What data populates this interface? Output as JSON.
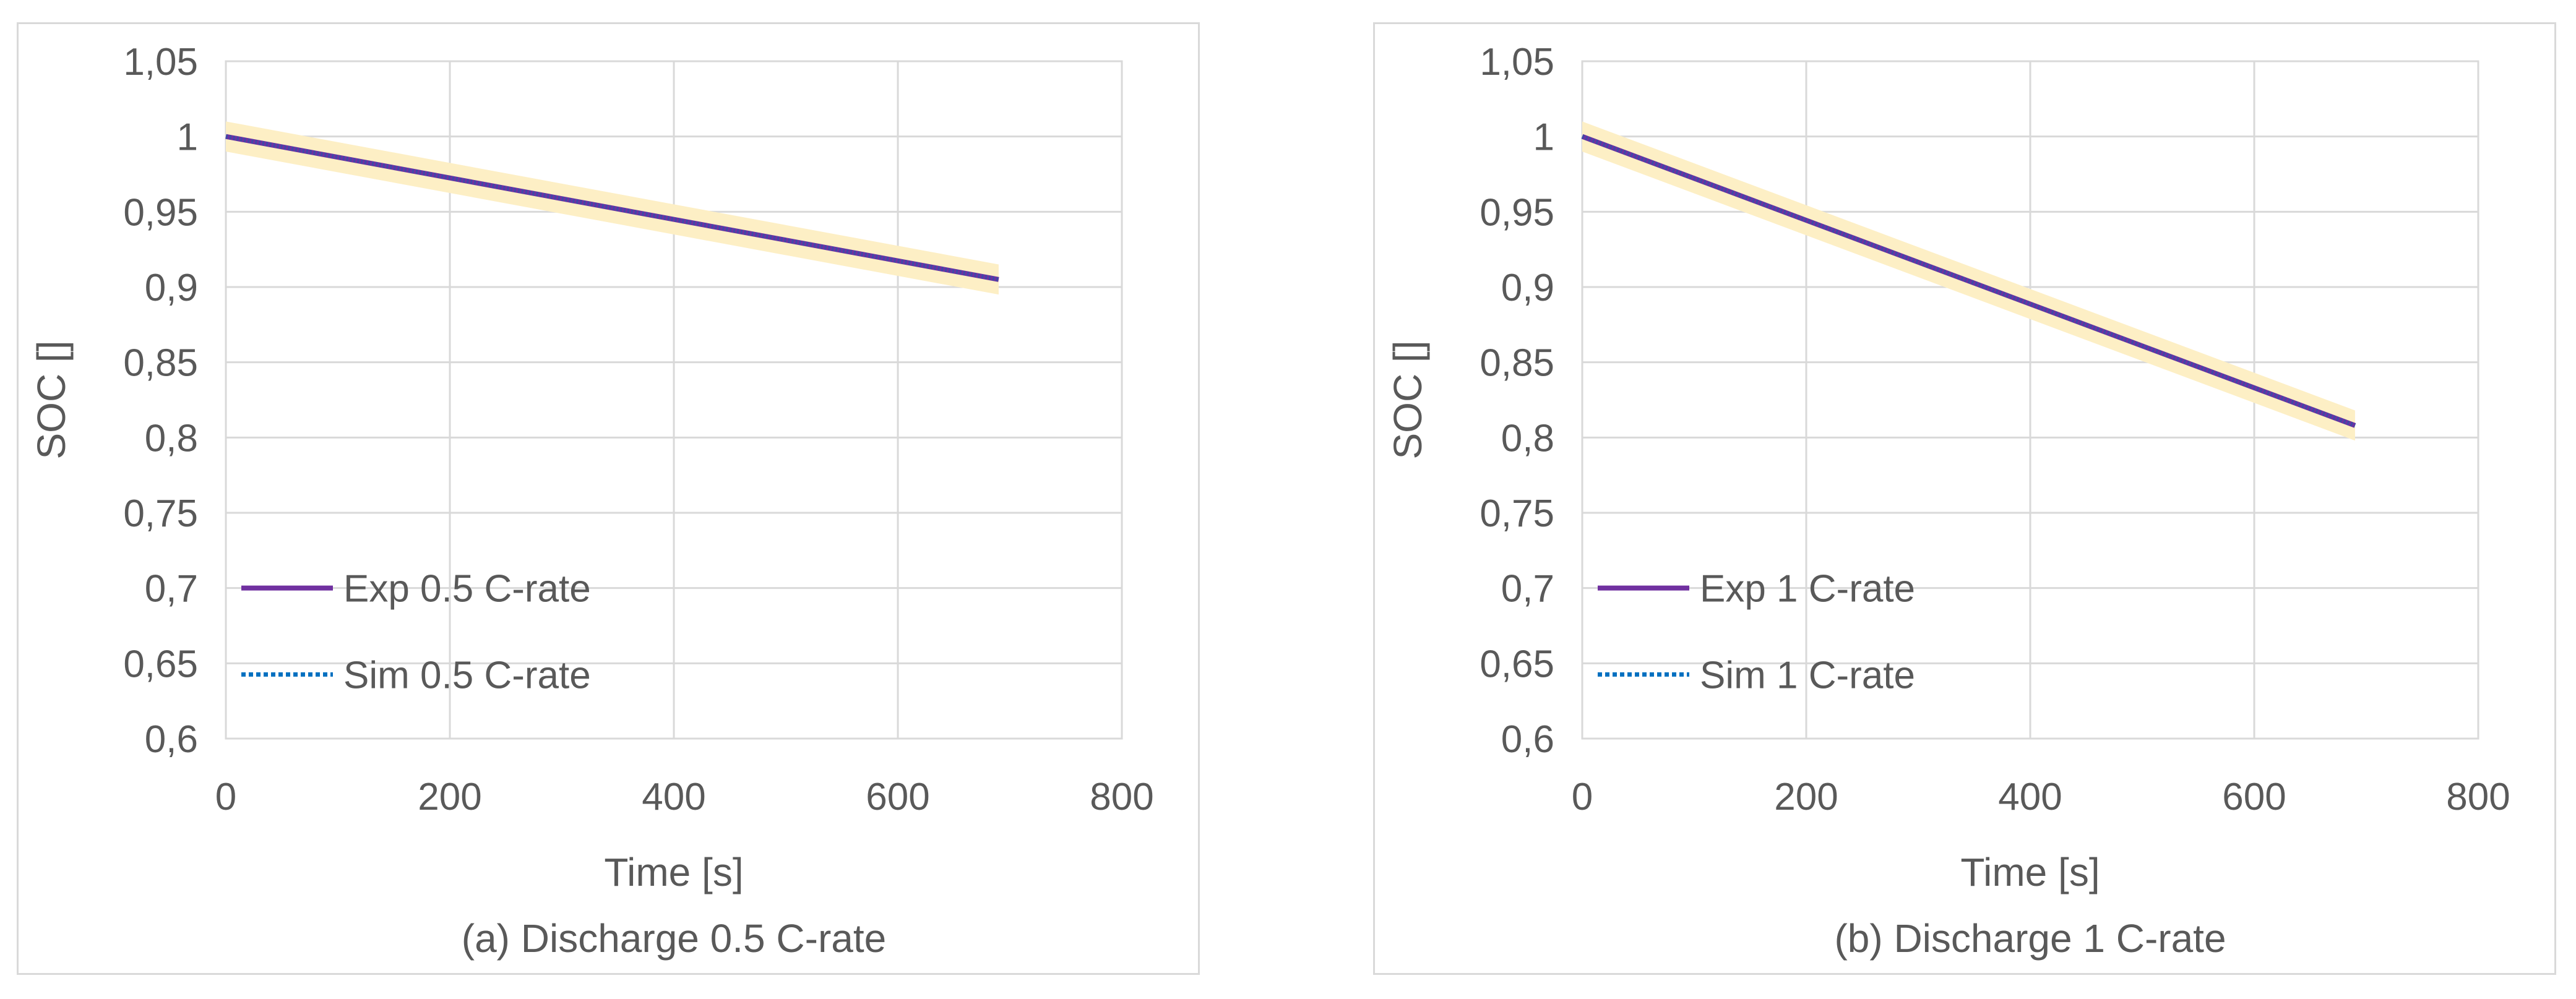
{
  "colors": {
    "grid": "#d9d9d9",
    "axis_text": "#595959",
    "exp": "#7030a0",
    "sim": "#0070c0",
    "band": "#fdefc5",
    "overlap": "#3f48a8"
  },
  "chart_data": [
    {
      "type": "line",
      "caption": "(a) Discharge 0.5 C-rate",
      "xlabel": "Time [s]",
      "ylabel": "SOC []",
      "xlim": [
        0,
        800
      ],
      "ylim": [
        0.6,
        1.05
      ],
      "xticks": [
        0,
        200,
        400,
        600,
        800
      ],
      "xtick_labels": [
        "0",
        "200",
        "400",
        "600",
        "800"
      ],
      "yticks": [
        0.6,
        0.65,
        0.7,
        0.75,
        0.8,
        0.85,
        0.9,
        0.95,
        1,
        1.05
      ],
      "ytick_labels": [
        "0,6",
        "0,65",
        "0,7",
        "0,75",
        "0,8",
        "0,85",
        "0,9",
        "0,95",
        "1",
        "1,05"
      ],
      "grid": true,
      "legend_position": "bottom-left",
      "series": [
        {
          "name": "Exp 0.5 C-rate",
          "style": "solid",
          "x": [
            0,
            690
          ],
          "y": [
            1.0,
            0.905
          ]
        },
        {
          "name": "Sim 0.5 C-rate",
          "style": "dotted",
          "x": [
            0,
            690
          ],
          "y": [
            1.0,
            0.905
          ]
        }
      ],
      "band": {
        "x": [
          0,
          690
        ],
        "upper": [
          1.01,
          0.915
        ],
        "lower": [
          0.99,
          0.895
        ]
      }
    },
    {
      "type": "line",
      "caption": "(b) Discharge 1 C-rate",
      "xlabel": "Time [s]",
      "ylabel": "SOC []",
      "xlim": [
        0,
        800
      ],
      "ylim": [
        0.6,
        1.05
      ],
      "xticks": [
        0,
        200,
        400,
        600,
        800
      ],
      "xtick_labels": [
        "0",
        "200",
        "400",
        "600",
        "800"
      ],
      "yticks": [
        0.6,
        0.65,
        0.7,
        0.75,
        0.8,
        0.85,
        0.9,
        0.95,
        1,
        1.05
      ],
      "ytick_labels": [
        "0,6",
        "0,65",
        "0,7",
        "0,75",
        "0,8",
        "0,85",
        "0,9",
        "0,95",
        "1",
        "1,05"
      ],
      "grid": true,
      "legend_position": "bottom-left",
      "series": [
        {
          "name": "Exp 1 C-rate",
          "style": "solid",
          "x": [
            0,
            690
          ],
          "y": [
            1.0,
            0.808
          ]
        },
        {
          "name": "Sim 1 C-rate",
          "style": "dotted",
          "x": [
            0,
            690
          ],
          "y": [
            1.0,
            0.808
          ]
        }
      ],
      "band": {
        "x": [
          0,
          690
        ],
        "upper": [
          1.01,
          0.818
        ],
        "lower": [
          0.99,
          0.798
        ]
      }
    }
  ]
}
